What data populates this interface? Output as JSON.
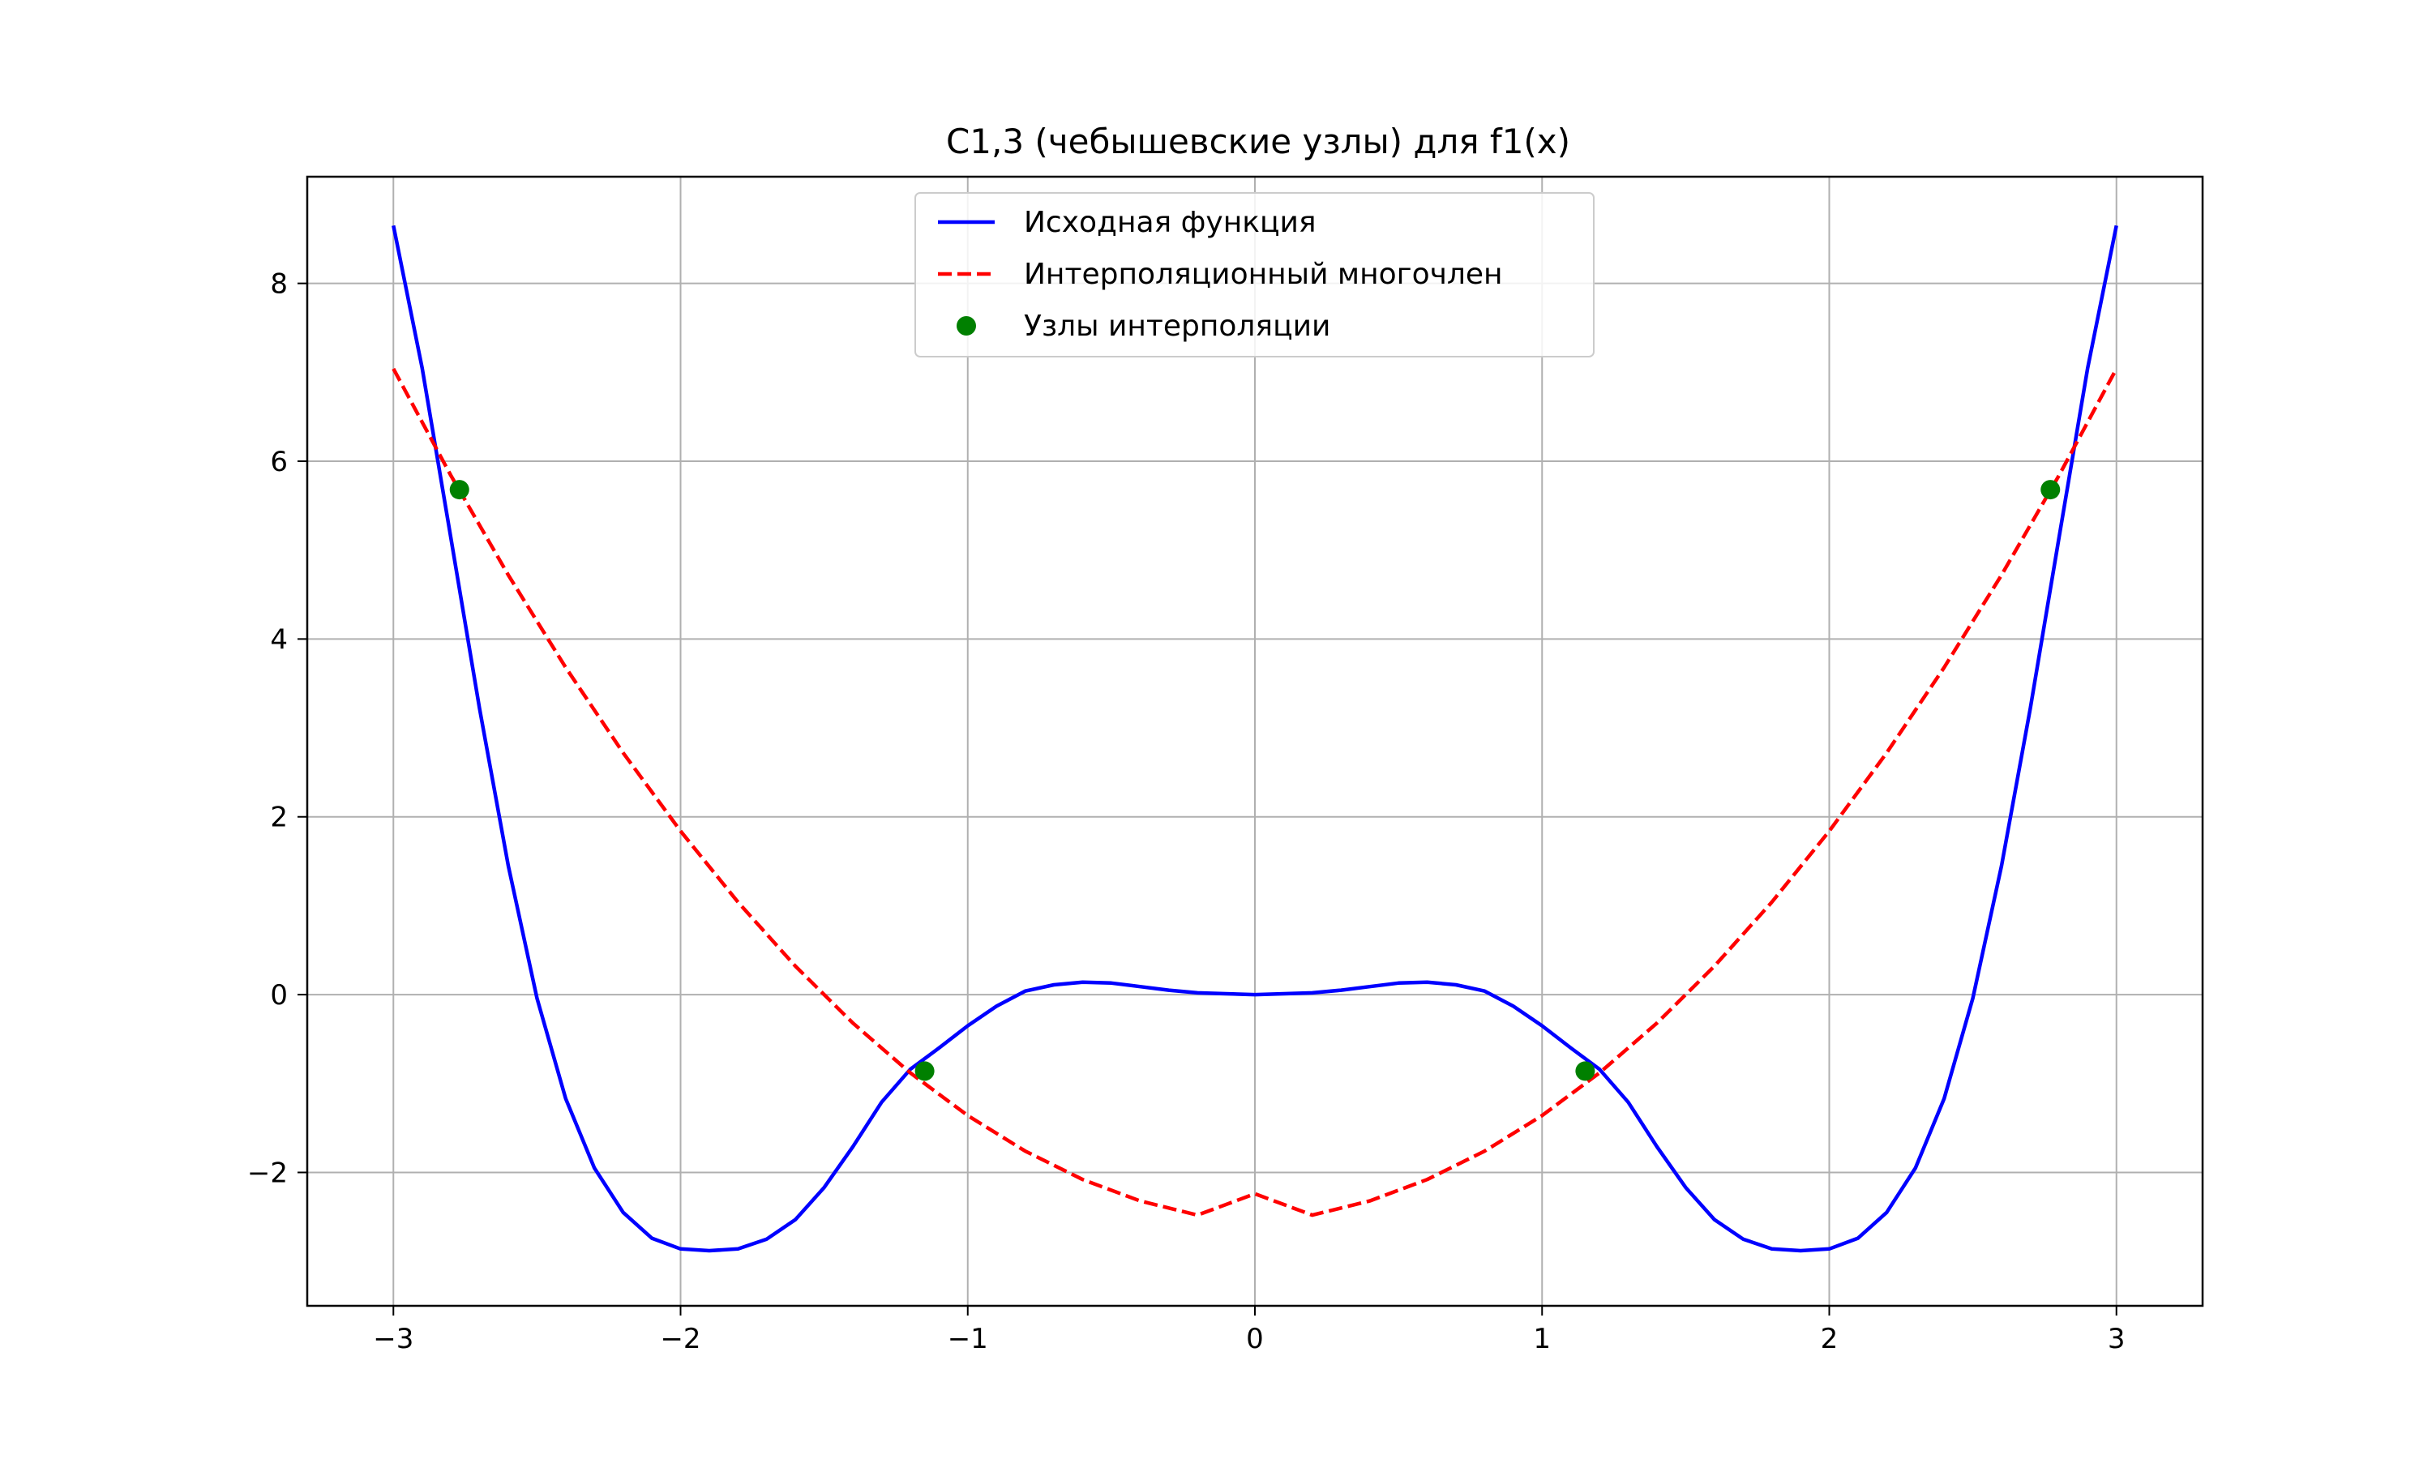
{
  "chart_data": {
    "type": "line",
    "title": "C1,3 (чебышевские узлы) для f1(x)",
    "xlim": [
      -3.3,
      3.3
    ],
    "ylim": [
      -3.5,
      9.2
    ],
    "xticks": [
      {
        "value": -3,
        "label": "−3"
      },
      {
        "value": -2,
        "label": "−2"
      },
      {
        "value": -1,
        "label": "−1"
      },
      {
        "value": 0,
        "label": "0"
      },
      {
        "value": 1,
        "label": "1"
      },
      {
        "value": 2,
        "label": "2"
      },
      {
        "value": 3,
        "label": "3"
      }
    ],
    "yticks": [
      {
        "value": -2,
        "label": "−2"
      },
      {
        "value": 0,
        "label": "0"
      },
      {
        "value": 2,
        "label": "2"
      },
      {
        "value": 4,
        "label": "4"
      },
      {
        "value": 6,
        "label": "6"
      },
      {
        "value": 8,
        "label": "8"
      }
    ],
    "grid": true,
    "legend_position": "upper-center",
    "series": [
      {
        "name": "Исходная функция",
        "kind": "line",
        "style": "solid",
        "color": "#0000ff",
        "x": [
          -3.0,
          -2.9,
          -2.8,
          -2.7,
          -2.6,
          -2.5,
          -2.4,
          -2.3,
          -2.2,
          -2.1,
          -2.0,
          -1.9,
          -1.8,
          -1.7,
          -1.6,
          -1.5,
          -1.4,
          -1.3,
          -1.2,
          -1.1,
          -1.0,
          -0.9,
          -0.8,
          -0.7,
          -0.6,
          -0.5,
          -0.4,
          -0.3,
          -0.2,
          -0.1,
          0.0,
          0.1,
          0.2,
          0.3,
          0.4,
          0.5,
          0.6,
          0.7,
          0.8,
          0.9,
          1.0,
          1.1,
          1.2,
          1.3,
          1.4,
          1.5,
          1.6,
          1.7,
          1.8,
          1.9,
          2.0,
          2.1,
          2.2,
          2.3,
          2.4,
          2.5,
          2.6,
          2.7,
          2.8,
          2.9,
          3.0
        ],
        "y": [
          8.65,
          7.05,
          5.14,
          3.22,
          1.45,
          -0.04,
          -1.17,
          -1.95,
          -2.45,
          -2.74,
          -2.86,
          -2.88,
          -2.86,
          -2.75,
          -2.53,
          -2.17,
          -1.71,
          -1.21,
          -0.84,
          -0.6,
          -0.35,
          -0.13,
          0.04,
          0.11,
          0.14,
          0.13,
          0.09,
          0.05,
          0.02,
          0.01,
          0.0,
          0.01,
          0.02,
          0.05,
          0.09,
          0.13,
          0.14,
          0.11,
          0.04,
          -0.13,
          -0.35,
          -0.6,
          -0.84,
          -1.21,
          -1.71,
          -2.17,
          -2.53,
          -2.75,
          -2.86,
          -2.88,
          -2.86,
          -2.74,
          -2.45,
          -1.95,
          -1.17,
          -0.04,
          1.45,
          3.22,
          5.14,
          7.05,
          8.65
        ]
      },
      {
        "name": "Интерполяционный многочлен",
        "kind": "line",
        "style": "dashed",
        "color": "#ff0000",
        "x": [
          -3.0,
          -2.8,
          -2.6,
          -2.4,
          -2.2,
          -2.0,
          -1.8,
          -1.6,
          -1.4,
          -1.2,
          -1.0,
          -0.8,
          -0.6,
          -0.4,
          -0.2,
          0.0,
          0.2,
          0.4,
          0.6,
          0.8,
          1.0,
          1.2,
          1.4,
          1.6,
          1.8,
          2.0,
          2.2,
          2.4,
          2.6,
          2.8,
          3.0
        ],
        "y": [
          7.04,
          5.84,
          4.72,
          3.68,
          2.72,
          1.84,
          1.04,
          0.32,
          -0.32,
          -0.88,
          -1.36,
          -1.76,
          -2.08,
          -2.32,
          -2.48,
          -2.24,
          -2.48,
          -2.32,
          -2.08,
          -1.76,
          -1.36,
          -0.88,
          -0.32,
          0.32,
          1.04,
          1.84,
          2.72,
          3.68,
          4.72,
          5.84,
          7.04
        ]
      },
      {
        "name": "Узлы интерполяции",
        "kind": "scatter",
        "color": "#008000",
        "x": [
          -2.77,
          -1.15,
          1.15,
          2.77
        ],
        "y": [
          5.68,
          -0.86,
          -0.86,
          5.68
        ]
      }
    ]
  }
}
